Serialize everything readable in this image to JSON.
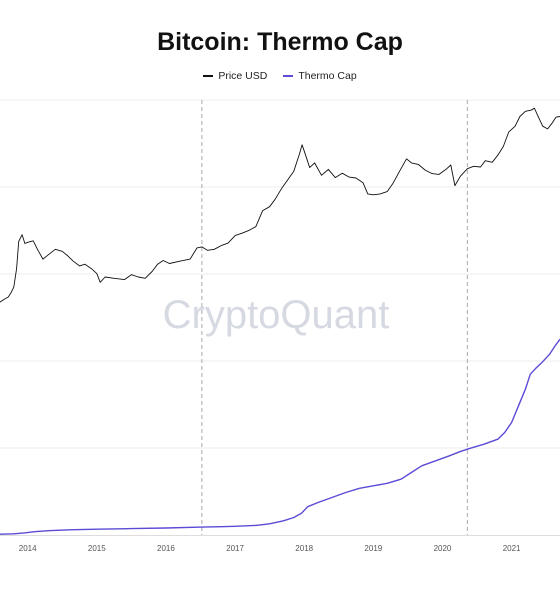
{
  "colors": {
    "price": "#111111",
    "thermo": "#5b4bd6",
    "watermark": "#d7d9e2",
    "grid": "#ececec",
    "halving": "#aaaaaa",
    "tick": "#555555"
  },
  "watermark": "CryptoQuant",
  "chart_data": {
    "type": "line",
    "title": "Bitcoin: Thermo Cap",
    "xlabel": "",
    "ylabel": "",
    "legend_position": "top-center",
    "grid": true,
    "x_ticks": [
      "2014",
      "2015",
      "2016",
      "2017",
      "2018",
      "2019",
      "2020",
      "2021"
    ],
    "xlim": [
      2013.6,
      2021.7
    ],
    "halving_lines": [
      2016.52,
      2020.36
    ],
    "series": [
      {
        "name": "Price USD",
        "color": "#111111",
        "scale": "log",
        "values": [
          [
            2013.6,
            110
          ],
          [
            2013.66,
            120
          ],
          [
            2013.72,
            130
          ],
          [
            2013.76,
            150
          ],
          [
            2013.8,
            180
          ],
          [
            2013.84,
            330
          ],
          [
            2013.87,
            800
          ],
          [
            2013.92,
            1000
          ],
          [
            2013.96,
            750
          ],
          [
            2014.0,
            780
          ],
          [
            2014.08,
            820
          ],
          [
            2014.15,
            600
          ],
          [
            2014.22,
            450
          ],
          [
            2014.3,
            520
          ],
          [
            2014.4,
            620
          ],
          [
            2014.5,
            580
          ],
          [
            2014.58,
            500
          ],
          [
            2014.66,
            420
          ],
          [
            2014.75,
            360
          ],
          [
            2014.83,
            380
          ],
          [
            2014.92,
            330
          ],
          [
            2015.0,
            280
          ],
          [
            2015.05,
            210
          ],
          [
            2015.12,
            250
          ],
          [
            2015.25,
            240
          ],
          [
            2015.4,
            230
          ],
          [
            2015.5,
            270
          ],
          [
            2015.6,
            250
          ],
          [
            2015.7,
            240
          ],
          [
            2015.8,
            300
          ],
          [
            2015.88,
            380
          ],
          [
            2015.96,
            430
          ],
          [
            2016.05,
            390
          ],
          [
            2016.2,
            420
          ],
          [
            2016.35,
            450
          ],
          [
            2016.45,
            650
          ],
          [
            2016.52,
            670
          ],
          [
            2016.6,
            600
          ],
          [
            2016.7,
            620
          ],
          [
            2016.8,
            700
          ],
          [
            2016.9,
            760
          ],
          [
            2017.0,
            970
          ],
          [
            2017.1,
            1050
          ],
          [
            2017.2,
            1150
          ],
          [
            2017.3,
            1300
          ],
          [
            2017.4,
            2200
          ],
          [
            2017.5,
            2500
          ],
          [
            2017.58,
            3200
          ],
          [
            2017.67,
            4500
          ],
          [
            2017.75,
            5800
          ],
          [
            2017.85,
            8000
          ],
          [
            2017.93,
            14000
          ],
          [
            2017.97,
            19000
          ],
          [
            2018.02,
            13500
          ],
          [
            2018.08,
            9000
          ],
          [
            2018.15,
            10500
          ],
          [
            2018.25,
            7000
          ],
          [
            2018.35,
            8500
          ],
          [
            2018.45,
            6500
          ],
          [
            2018.55,
            7500
          ],
          [
            2018.65,
            6600
          ],
          [
            2018.75,
            6400
          ],
          [
            2018.85,
            5500
          ],
          [
            2018.92,
            3800
          ],
          [
            2019.0,
            3700
          ],
          [
            2019.1,
            3800
          ],
          [
            2019.2,
            4100
          ],
          [
            2019.28,
            5300
          ],
          [
            2019.38,
            8000
          ],
          [
            2019.48,
            12000
          ],
          [
            2019.55,
            10500
          ],
          [
            2019.65,
            10000
          ],
          [
            2019.75,
            8300
          ],
          [
            2019.85,
            7400
          ],
          [
            2019.95,
            7200
          ],
          [
            2020.05,
            8500
          ],
          [
            2020.12,
            9800
          ],
          [
            2020.18,
            5000
          ],
          [
            2020.26,
            6800
          ],
          [
            2020.36,
            8700
          ],
          [
            2020.45,
            9400
          ],
          [
            2020.55,
            9200
          ],
          [
            2020.62,
            11300
          ],
          [
            2020.72,
            10700
          ],
          [
            2020.8,
            13500
          ],
          [
            2020.88,
            18000
          ],
          [
            2020.96,
            29000
          ],
          [
            2021.05,
            35000
          ],
          [
            2021.12,
            48000
          ],
          [
            2021.2,
            57000
          ],
          [
            2021.28,
            59000
          ],
          [
            2021.33,
            63000
          ],
          [
            2021.38,
            49000
          ],
          [
            2021.45,
            35000
          ],
          [
            2021.52,
            32000
          ],
          [
            2021.58,
            38000
          ],
          [
            2021.64,
            47000
          ],
          [
            2021.7,
            48000
          ]
        ]
      },
      {
        "name": "Thermo Cap",
        "color": "#5b4bd6",
        "scale": "linear",
        "values": [
          [
            2013.6,
            0.1
          ],
          [
            2013.8,
            0.15
          ],
          [
            2013.95,
            0.25
          ],
          [
            2014.1,
            0.4
          ],
          [
            2014.3,
            0.52
          ],
          [
            2014.6,
            0.62
          ],
          [
            2015.0,
            0.7
          ],
          [
            2015.5,
            0.77
          ],
          [
            2016.0,
            0.84
          ],
          [
            2016.52,
            0.95
          ],
          [
            2016.8,
            1.0
          ],
          [
            2017.0,
            1.05
          ],
          [
            2017.3,
            1.15
          ],
          [
            2017.5,
            1.35
          ],
          [
            2017.7,
            1.7
          ],
          [
            2017.85,
            2.1
          ],
          [
            2017.96,
            2.6
          ],
          [
            2018.05,
            3.4
          ],
          [
            2018.2,
            3.9
          ],
          [
            2018.4,
            4.5
          ],
          [
            2018.6,
            5.1
          ],
          [
            2018.8,
            5.6
          ],
          [
            2019.0,
            5.9
          ],
          [
            2019.2,
            6.2
          ],
          [
            2019.4,
            6.7
          ],
          [
            2019.55,
            7.5
          ],
          [
            2019.7,
            8.3
          ],
          [
            2019.9,
            8.9
          ],
          [
            2020.1,
            9.5
          ],
          [
            2020.25,
            10.0
          ],
          [
            2020.4,
            10.4
          ],
          [
            2020.6,
            10.9
          ],
          [
            2020.8,
            11.5
          ],
          [
            2020.9,
            12.3
          ],
          [
            2021.0,
            13.5
          ],
          [
            2021.1,
            15.5
          ],
          [
            2021.2,
            17.5
          ],
          [
            2021.27,
            19.3
          ],
          [
            2021.35,
            20.0
          ],
          [
            2021.45,
            20.8
          ],
          [
            2021.55,
            21.7
          ],
          [
            2021.62,
            22.6
          ],
          [
            2021.7,
            23.5
          ]
        ]
      }
    ]
  }
}
